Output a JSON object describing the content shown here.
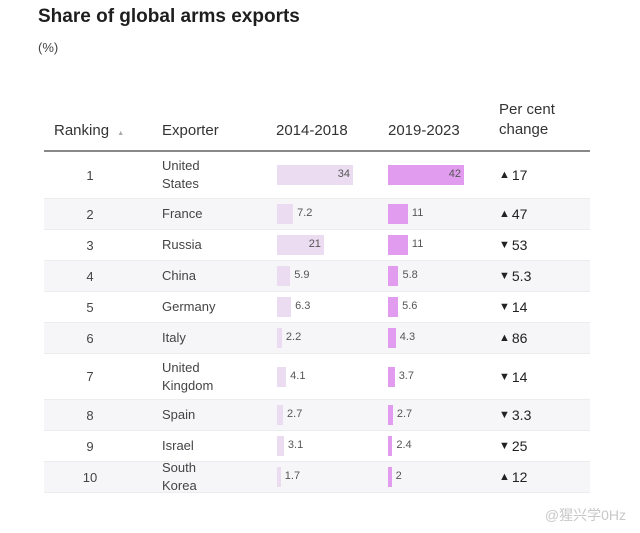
{
  "chart_data": {
    "type": "table",
    "title": "Share of global arms exports",
    "unit": "(%)",
    "columns": [
      "Ranking",
      "Exporter",
      "2014-2018",
      "2019-2023",
      "Per cent change"
    ],
    "sort_indicator": "▲",
    "bar_colors": {
      "2014-2018": "#ebdcf1",
      "2019-2023": "#e19cf0"
    },
    "rows": [
      {
        "rank": "1",
        "exporter": "United States",
        "v1": 34,
        "v2": 42,
        "dir": "up",
        "change": "17"
      },
      {
        "rank": "2",
        "exporter": "France",
        "v1": 7.2,
        "v2": 11,
        "dir": "up",
        "change": "47"
      },
      {
        "rank": "3",
        "exporter": "Russia",
        "v1": 21,
        "v2": 11,
        "dir": "down",
        "change": "53"
      },
      {
        "rank": "4",
        "exporter": "China",
        "v1": 5.9,
        "v2": 5.8,
        "dir": "down",
        "change": "5.3"
      },
      {
        "rank": "5",
        "exporter": "Germany",
        "v1": 6.3,
        "v2": 5.6,
        "dir": "down",
        "change": "14"
      },
      {
        "rank": "6",
        "exporter": "Italy",
        "v1": 2.2,
        "v2": 4.3,
        "dir": "up",
        "change": "86"
      },
      {
        "rank": "7",
        "exporter": "United Kingdom",
        "v1": 4.1,
        "v2": 3.7,
        "dir": "down",
        "change": "14"
      },
      {
        "rank": "8",
        "exporter": "Spain",
        "v1": 2.7,
        "v2": 2.7,
        "dir": "down",
        "change": "3.3"
      },
      {
        "rank": "9",
        "exporter": "Israel",
        "v1": 3.1,
        "v2": 2.4,
        "dir": "down",
        "change": "25"
      },
      {
        "rank": "10",
        "exporter": "South Korea",
        "v1": 1.7,
        "v2": 2,
        "dir": "up",
        "change": "12"
      }
    ]
  },
  "watermark": "@猩兴学0Hz"
}
